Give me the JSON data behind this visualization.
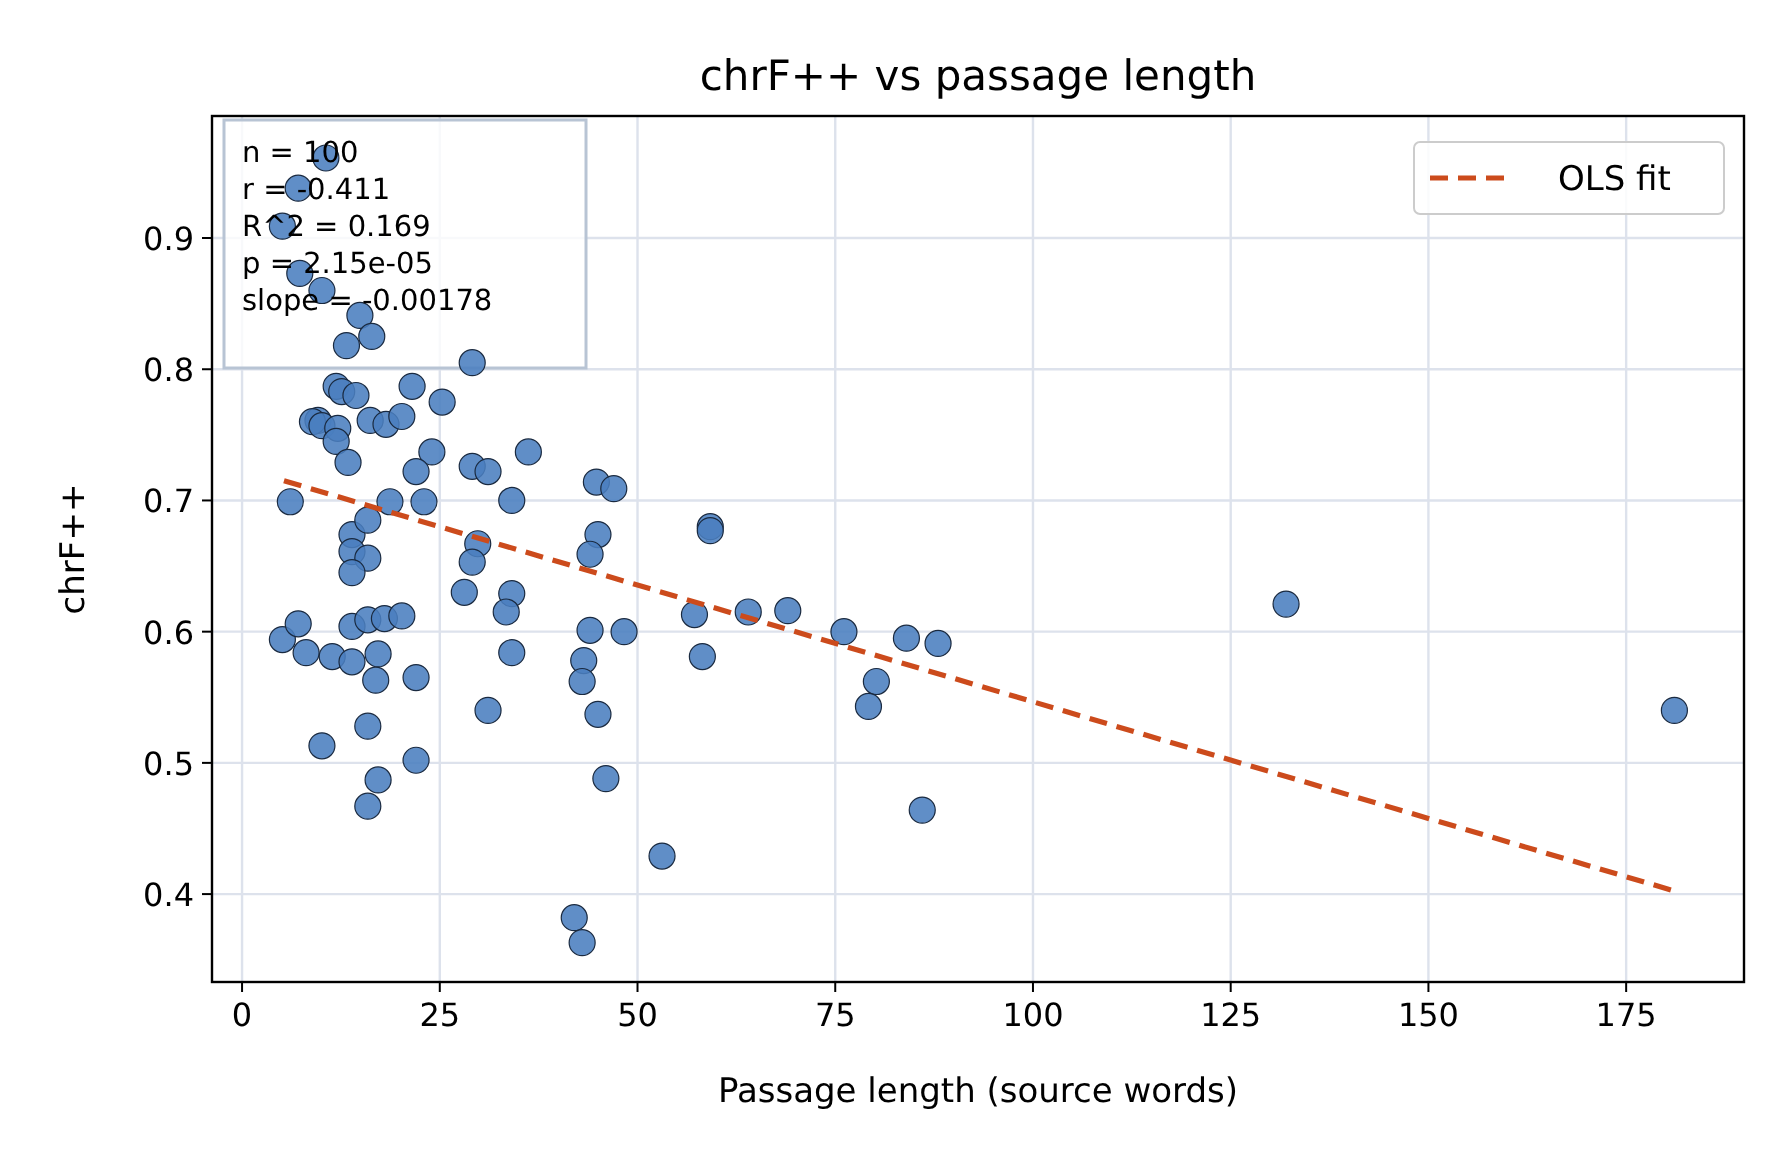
{
  "chart_data": {
    "type": "scatter",
    "title": "chrF++ vs passage length",
    "xlabel": "Passage length (source words)",
    "ylabel": "chrF++",
    "xlim": [
      -3.8,
      189.9
    ],
    "ylim": [
      0.333,
      0.993
    ],
    "xticks": [
      0,
      25,
      50,
      75,
      100,
      125,
      150,
      175
    ],
    "yticks": [
      0.4,
      0.5,
      0.6,
      0.7,
      0.8,
      0.9
    ],
    "grid": true,
    "legend": "top right",
    "annotations": [
      "n = 100",
      "r = -0.411",
      "R^2 = 0.169",
      "p = 2.15e-05",
      "slope = -0.00178"
    ],
    "series": [
      {
        "color": "#4a7ebf",
        "marker": "circle",
        "x": [
          10.6,
          7.1,
          5.1,
          7.3,
          10.1,
          14.9,
          16.4,
          13.2,
          29.1,
          11.9,
          12.6,
          14.4,
          9.6,
          8.9,
          10.1,
          12.1,
          16.2,
          18.2,
          20.2,
          11.9,
          13.4,
          24.0,
          22.0,
          29.1,
          31.1,
          36.2,
          34.1,
          6.1,
          18.7,
          23.0,
          44.8,
          21.5,
          25.3,
          13.9,
          15.9,
          13.9,
          15.9,
          13.9,
          29.8,
          29.1,
          28.1,
          34.1,
          33.4,
          45.0,
          44.0,
          5.1,
          7.1,
          8.1,
          11.4,
          13.9,
          13.9,
          15.9,
          18.0,
          20.2,
          17.2,
          16.9,
          22.0,
          34.1,
          31.1,
          15.9,
          10.1,
          22.0,
          17.2,
          15.9,
          44.0,
          43.2,
          43.0,
          45.0,
          46.0,
          42.0,
          43.0,
          47.0,
          48.3,
          53.1,
          59.2,
          59.2,
          57.2,
          58.2,
          64.0,
          69.0,
          76.1,
          84.0,
          88.0,
          80.2,
          79.2,
          86.0,
          132.0,
          181.1
        ],
        "values": [
          0.961,
          0.938,
          0.909,
          0.873,
          0.86,
          0.841,
          0.825,
          0.818,
          0.805,
          0.787,
          0.783,
          0.78,
          0.761,
          0.76,
          0.757,
          0.755,
          0.761,
          0.758,
          0.764,
          0.745,
          0.729,
          0.737,
          0.722,
          0.726,
          0.722,
          0.737,
          0.7,
          0.699,
          0.699,
          0.699,
          0.714,
          0.787,
          0.775,
          0.674,
          0.685,
          0.661,
          0.656,
          0.645,
          0.667,
          0.653,
          0.63,
          0.629,
          0.615,
          0.674,
          0.659,
          0.594,
          0.606,
          0.584,
          0.581,
          0.577,
          0.604,
          0.609,
          0.61,
          0.612,
          0.583,
          0.563,
          0.565,
          0.584,
          0.54,
          0.528,
          0.513,
          0.502,
          0.487,
          0.467,
          0.601,
          0.578,
          0.562,
          0.537,
          0.488,
          0.382,
          0.363,
          0.709,
          0.6,
          0.429,
          0.68,
          0.677,
          0.613,
          0.581,
          0.615,
          0.616,
          0.6,
          0.595,
          0.591,
          0.562,
          0.543,
          0.464,
          0.621,
          0.54
        ]
      },
      {
        "type": "line",
        "name": "OLS fit",
        "color": "#cc4b1c",
        "line_style": "dashed",
        "marker": "none",
        "x": [
          5.3,
          181.3
        ],
        "values": [
          0.715,
          0.402
        ]
      }
    ]
  }
}
